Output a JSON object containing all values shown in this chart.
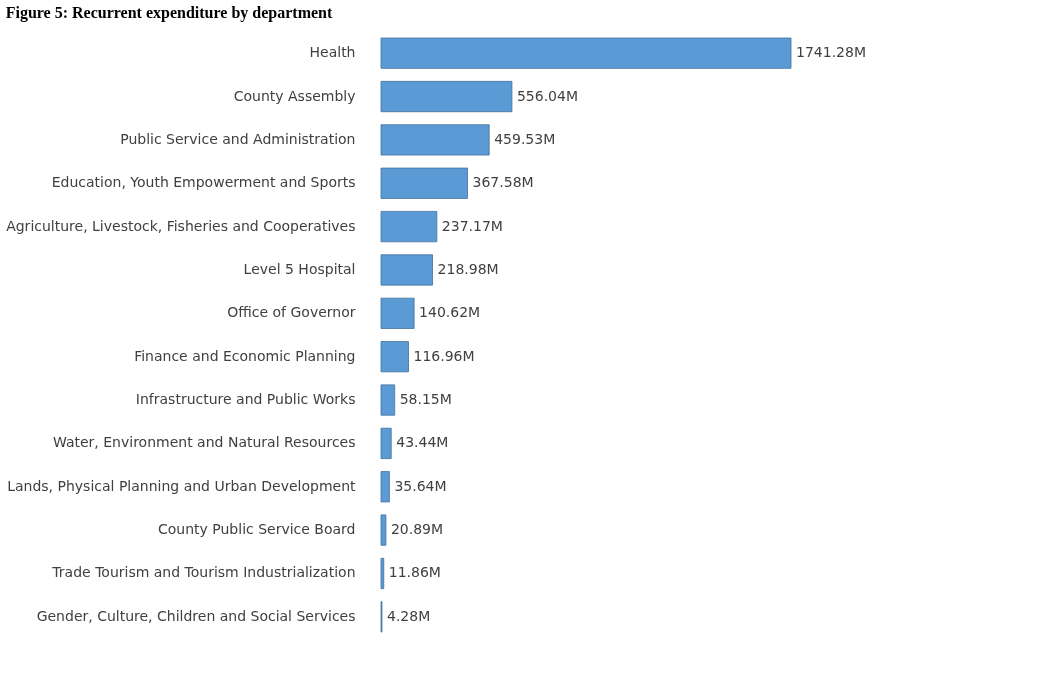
{
  "chart_data": {
    "type": "bar",
    "orientation": "horizontal",
    "title": "Figure 5: Recurrent expenditure by department",
    "categories": [
      "Health",
      "County Assembly",
      "Public Service and Administration",
      "Education, Youth Empowerment and Sports",
      "Agriculture, Livestock, Fisheries and Cooperatives",
      "Level 5 Hospital",
      "Office of Governor",
      "Finance and Economic Planning",
      "Infrastructure and Public Works",
      "Water, Environment and Natural Resources",
      "Lands, Physical Planning and Urban Development",
      "County Public Service Board",
      "Trade Tourism and Tourism Industrialization",
      "Gender, Culture, Children and Social Services"
    ],
    "values": [
      1741.28,
      556.04,
      459.53,
      367.58,
      237.17,
      218.98,
      140.62,
      116.96,
      58.15,
      43.44,
      35.64,
      20.89,
      11.86,
      4.28
    ],
    "value_labels": [
      "1741.28M",
      "556.04M",
      "459.53M",
      "367.58M",
      "237.17M",
      "218.98M",
      "140.62M",
      "116.96M",
      "58.15M",
      "43.44M",
      "35.64M",
      "20.89M",
      "11.86M",
      "4.28M"
    ],
    "color": "#5b9bd5"
  }
}
